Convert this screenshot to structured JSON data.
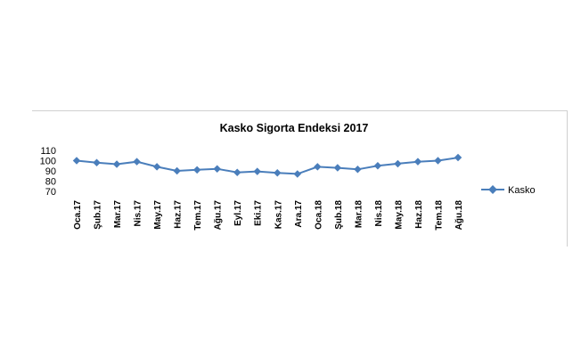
{
  "chart_data": {
    "type": "line",
    "title": "Kasko Sigorta Endeksi 2017",
    "xlabel": "",
    "ylabel": "",
    "categories": [
      "Oca.17",
      "Şub.17",
      "Mar.17",
      "Nis.17",
      "May.17",
      "Haz.17",
      "Tem.17",
      "Ağu.17",
      "Eyl.17",
      "Eki.17",
      "Kas.17",
      "Ara.17",
      "Oca.18",
      "Şub.18",
      "Mar.18",
      "Nis.18",
      "May.18",
      "Haz.18",
      "Tem.18",
      "Ağu.18"
    ],
    "yticks": [
      "110",
      "100",
      "90",
      "80",
      "70"
    ],
    "ylim": [
      70,
      110
    ],
    "grid": false,
    "legend_position": "right",
    "series": [
      {
        "name": "Kasko",
        "color": "#4a7ebb",
        "values": [
          100,
          98,
          96.5,
          99,
          94,
          90,
          91,
          92,
          88.5,
          89.5,
          88,
          87,
          94,
          93,
          91.5,
          95,
          97,
          99,
          100,
          103
        ]
      }
    ]
  }
}
